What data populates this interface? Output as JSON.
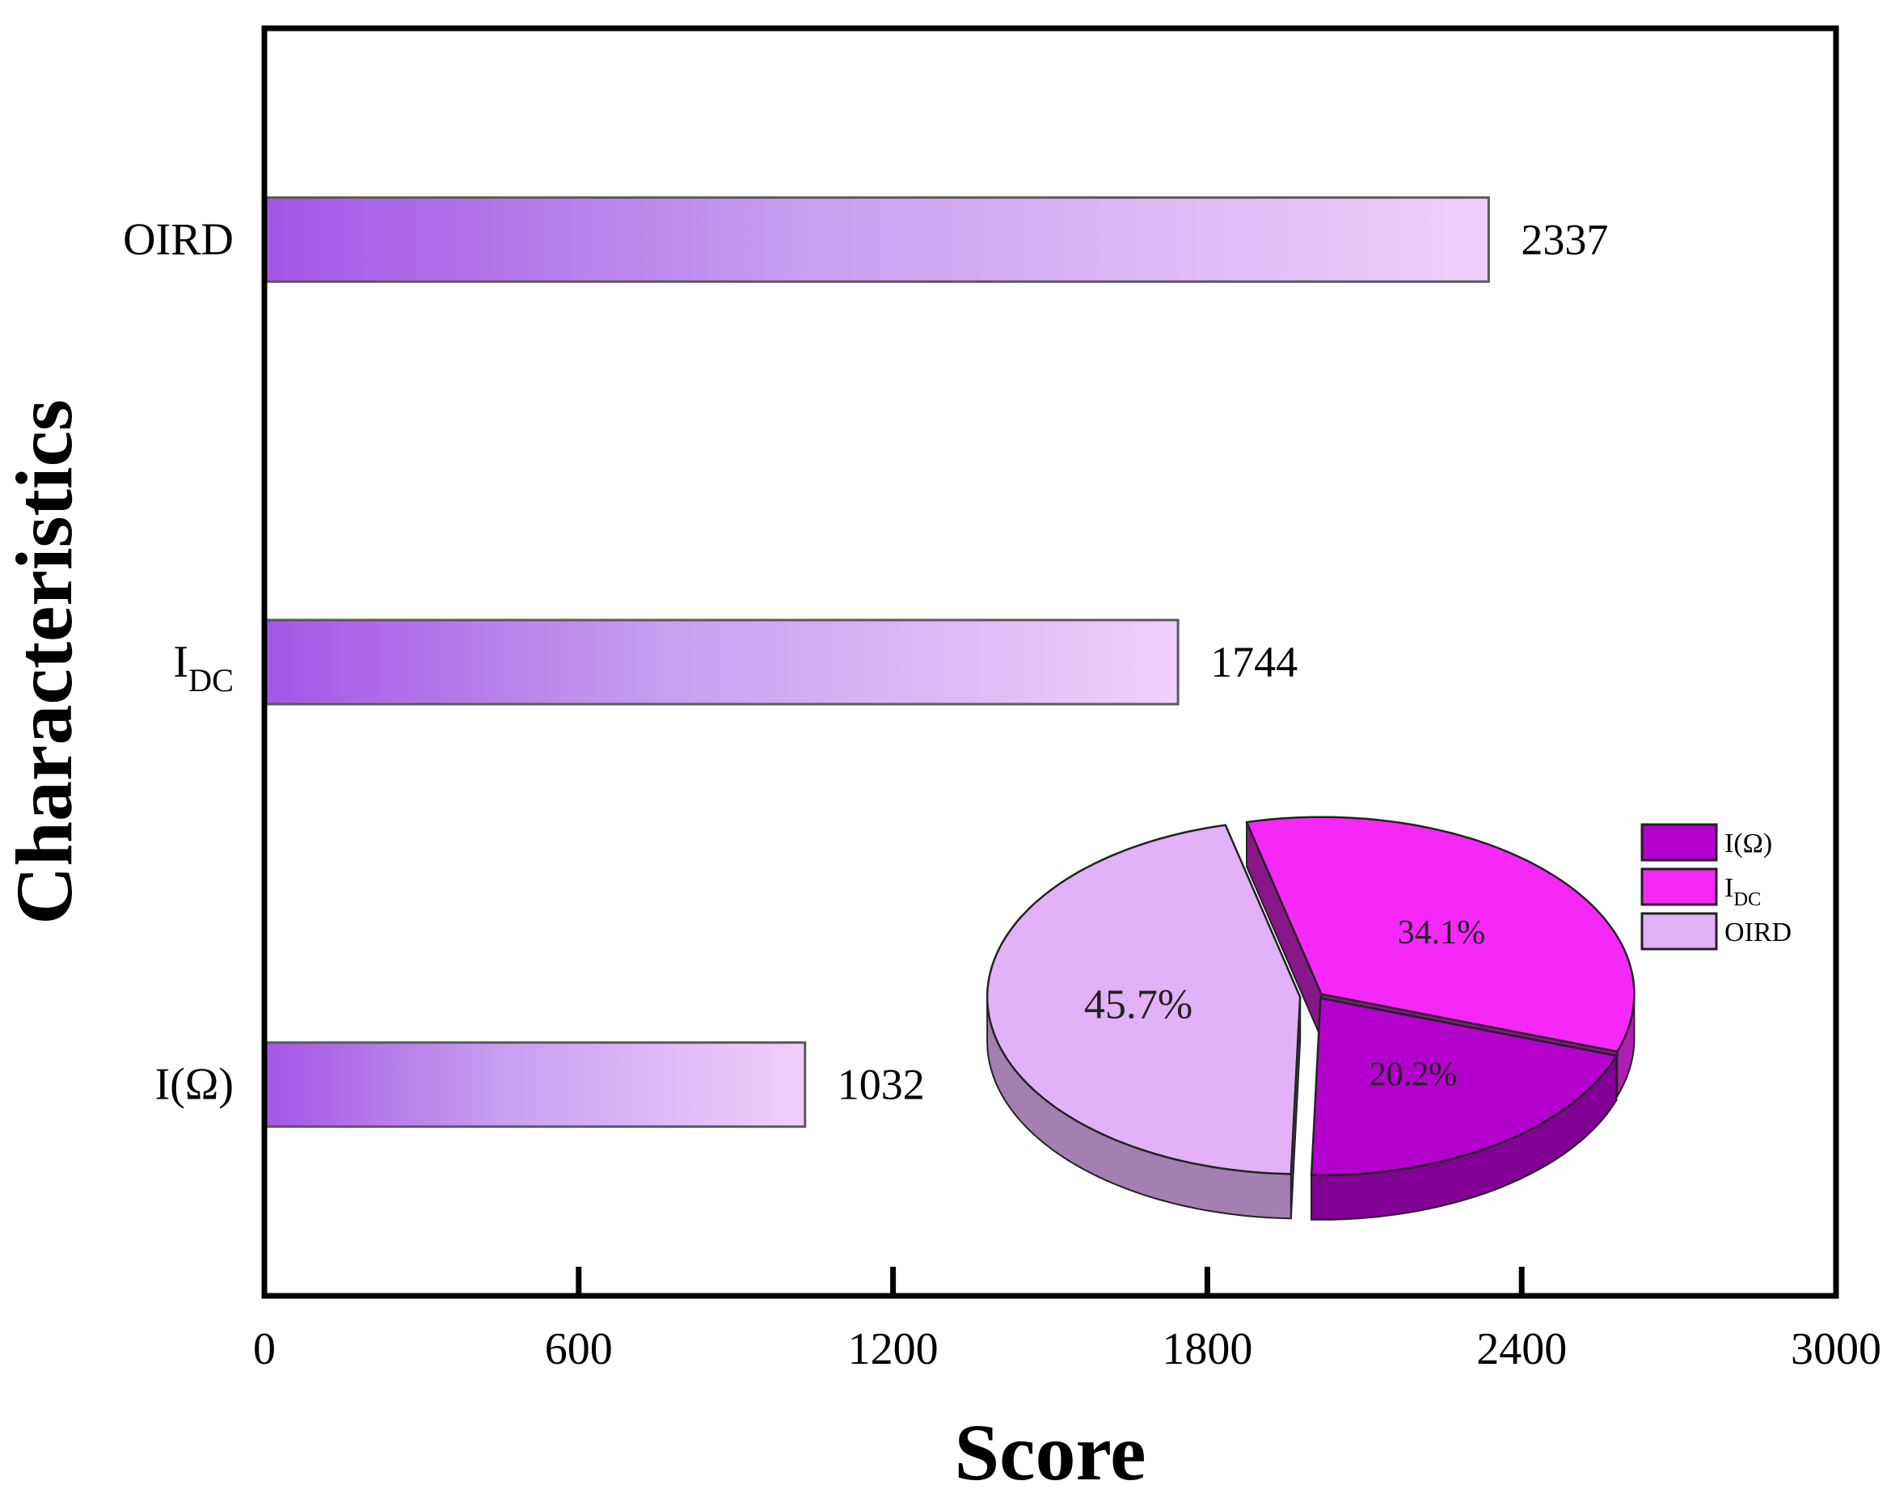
{
  "chart_data": [
    {
      "type": "bar",
      "orientation": "horizontal",
      "categories": [
        {
          "base": "I(Ω)",
          "sub": ""
        },
        {
          "base": "I",
          "sub": "DC"
        },
        {
          "base": "OIRD",
          "sub": ""
        }
      ],
      "values": [
        1032,
        1744,
        2337
      ],
      "value_labels": [
        "1032",
        "1744",
        "2337"
      ],
      "xlabel": "Score",
      "ylabel": "Characteristics",
      "xlim": [
        0,
        3000
      ],
      "xticks": [
        0,
        600,
        1200,
        1800,
        2400,
        3000
      ],
      "xtick_labels": [
        "0",
        "600",
        "1200",
        "1800",
        "2400",
        "3000"
      ],
      "grid": false,
      "bar_gradient": [
        "#a455e6",
        "#f0cffc"
      ],
      "bar_outline": "#5a5a5a"
    },
    {
      "type": "pie",
      "style": "3d",
      "labels": [
        {
          "base": "I(Ω)",
          "sub": ""
        },
        {
          "base": "I",
          "sub": "DC"
        },
        {
          "base": "OIRD",
          "sub": ""
        }
      ],
      "values": [
        20.2,
        34.1,
        45.7
      ],
      "value_labels": [
        "20.2%",
        "34.1%",
        "45.7%"
      ],
      "colors": [
        "#b400cc",
        "#f628f8",
        "#e2b1f7"
      ],
      "legend_position": "top-right"
    }
  ]
}
